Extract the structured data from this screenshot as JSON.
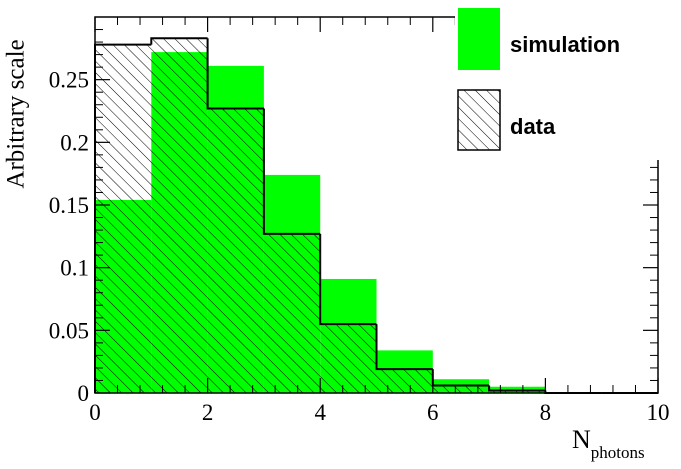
{
  "chart_data": {
    "type": "histogram",
    "y_label": "Arbitrary scale",
    "x_label": "N",
    "x_label_sub": "photons",
    "bins": [
      0,
      1,
      2,
      3,
      4,
      5,
      6,
      7,
      8,
      9,
      10
    ],
    "series": [
      {
        "name": "simulation",
        "color": "#00ff00",
        "fill": "solid",
        "values": [
          0.154,
          0.272,
          0.261,
          0.174,
          0.091,
          0.034,
          0.011,
          0.005,
          0,
          0
        ]
      },
      {
        "name": "data",
        "color": "#000000",
        "fill": "hatch",
        "values": [
          0.278,
          0.283,
          0.227,
          0.127,
          0.055,
          0.019,
          0.006,
          0.002,
          0,
          0
        ]
      }
    ],
    "xlim": [
      0,
      10
    ],
    "ylim": [
      0,
      0.3
    ],
    "xticks": [
      0,
      2,
      4,
      6,
      8,
      10
    ],
    "yticks": [
      0,
      0.05,
      0.1,
      0.15,
      0.2,
      0.25
    ]
  }
}
